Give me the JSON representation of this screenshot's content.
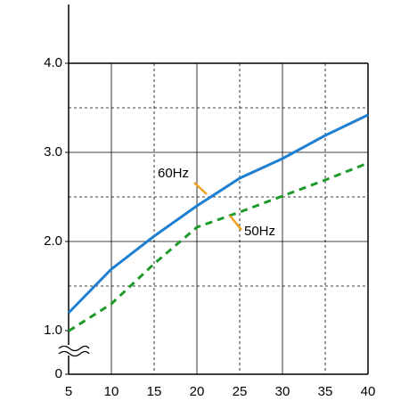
{
  "chart_data": {
    "type": "line",
    "x": [
      5,
      10,
      15,
      20,
      25,
      30,
      35,
      40
    ],
    "series": [
      {
        "name": "60Hz",
        "color": "#1f7fd0",
        "dash": false,
        "values": [
          1.2,
          1.69,
          2.06,
          2.4,
          2.71,
          2.93,
          3.19,
          3.42
        ]
      },
      {
        "name": "50Hz",
        "color": "#1e9a2a",
        "dash": true,
        "values": [
          0.99,
          1.3,
          1.75,
          2.16,
          2.33,
          2.51,
          2.69,
          2.88
        ]
      }
    ],
    "xlim": [
      5,
      40
    ],
    "xticks": [
      5,
      10,
      15,
      20,
      25,
      30,
      35,
      40
    ],
    "ylim": [
      0,
      4
    ],
    "yticks": [
      0,
      {
        "value": 1,
        "label": "1.0"
      },
      {
        "value": 2,
        "label": "2.0"
      },
      {
        "value": 3,
        "label": "3.0"
      },
      {
        "value": 4,
        "label": "4.0"
      }
    ],
    "minor_yticks": [
      1.5,
      2.5,
      3.5
    ],
    "axis_break": true,
    "grid": true
  }
}
